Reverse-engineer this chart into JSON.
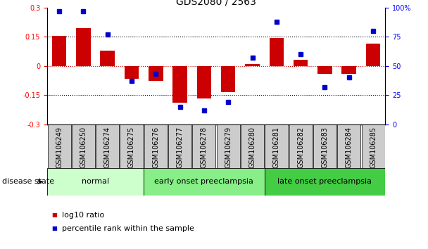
{
  "title": "GDS2080 / 2563",
  "samples": [
    "GSM106249",
    "GSM106250",
    "GSM106274",
    "GSM106275",
    "GSM106276",
    "GSM106277",
    "GSM106278",
    "GSM106279",
    "GSM106280",
    "GSM106281",
    "GSM106282",
    "GSM106283",
    "GSM106284",
    "GSM106285"
  ],
  "log10_ratio": [
    0.155,
    0.195,
    0.08,
    -0.065,
    -0.075,
    -0.19,
    -0.165,
    -0.135,
    0.01,
    0.145,
    0.03,
    -0.04,
    -0.04,
    0.115
  ],
  "percentile": [
    97,
    97,
    77,
    37,
    43,
    15,
    12,
    19,
    57,
    88,
    60,
    32,
    40,
    80
  ],
  "groups": [
    {
      "label": "normal",
      "start": 0,
      "end": 3,
      "color": "#ccffcc"
    },
    {
      "label": "early onset preeclampsia",
      "start": 4,
      "end": 8,
      "color": "#88ee88"
    },
    {
      "label": "late onset preeclampsia",
      "start": 9,
      "end": 13,
      "color": "#44cc44"
    }
  ],
  "ylim_left": [
    -0.3,
    0.3
  ],
  "ylim_right": [
    0,
    100
  ],
  "yticks_left": [
    -0.3,
    -0.15,
    0,
    0.15,
    0.3
  ],
  "yticks_right": [
    0,
    25,
    50,
    75,
    100
  ],
  "yticklabels_right": [
    "0",
    "25",
    "50",
    "75",
    "100%"
  ],
  "bar_color": "#cc0000",
  "point_color": "#0000cc",
  "label_box_color": "#cccccc",
  "zero_line_color": "#cc0000",
  "title_fontsize": 10,
  "tick_fontsize": 7,
  "label_fontsize": 7,
  "group_fontsize": 8,
  "legend_fontsize": 8,
  "disease_state_label": "disease state",
  "legend_items": [
    "log10 ratio",
    "percentile rank within the sample"
  ]
}
